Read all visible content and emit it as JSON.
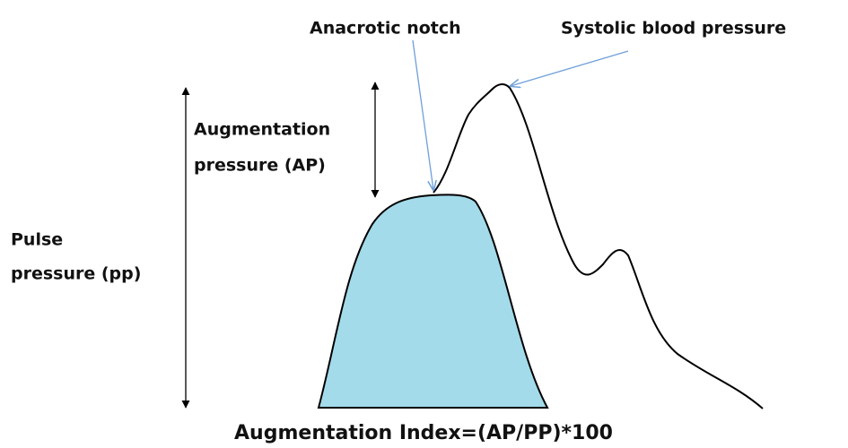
{
  "labels": {
    "anacrotic_notch": "Anacrotic notch",
    "systolic": "Systolic blood pressure",
    "augmentation_pressure": [
      "Augmentation",
      "pressure (AP)"
    ],
    "pulse_pressure": [
      "Pulse",
      "pressure (pp)"
    ],
    "formula": "Augmentation Index=(AP/PP)*100"
  }
}
